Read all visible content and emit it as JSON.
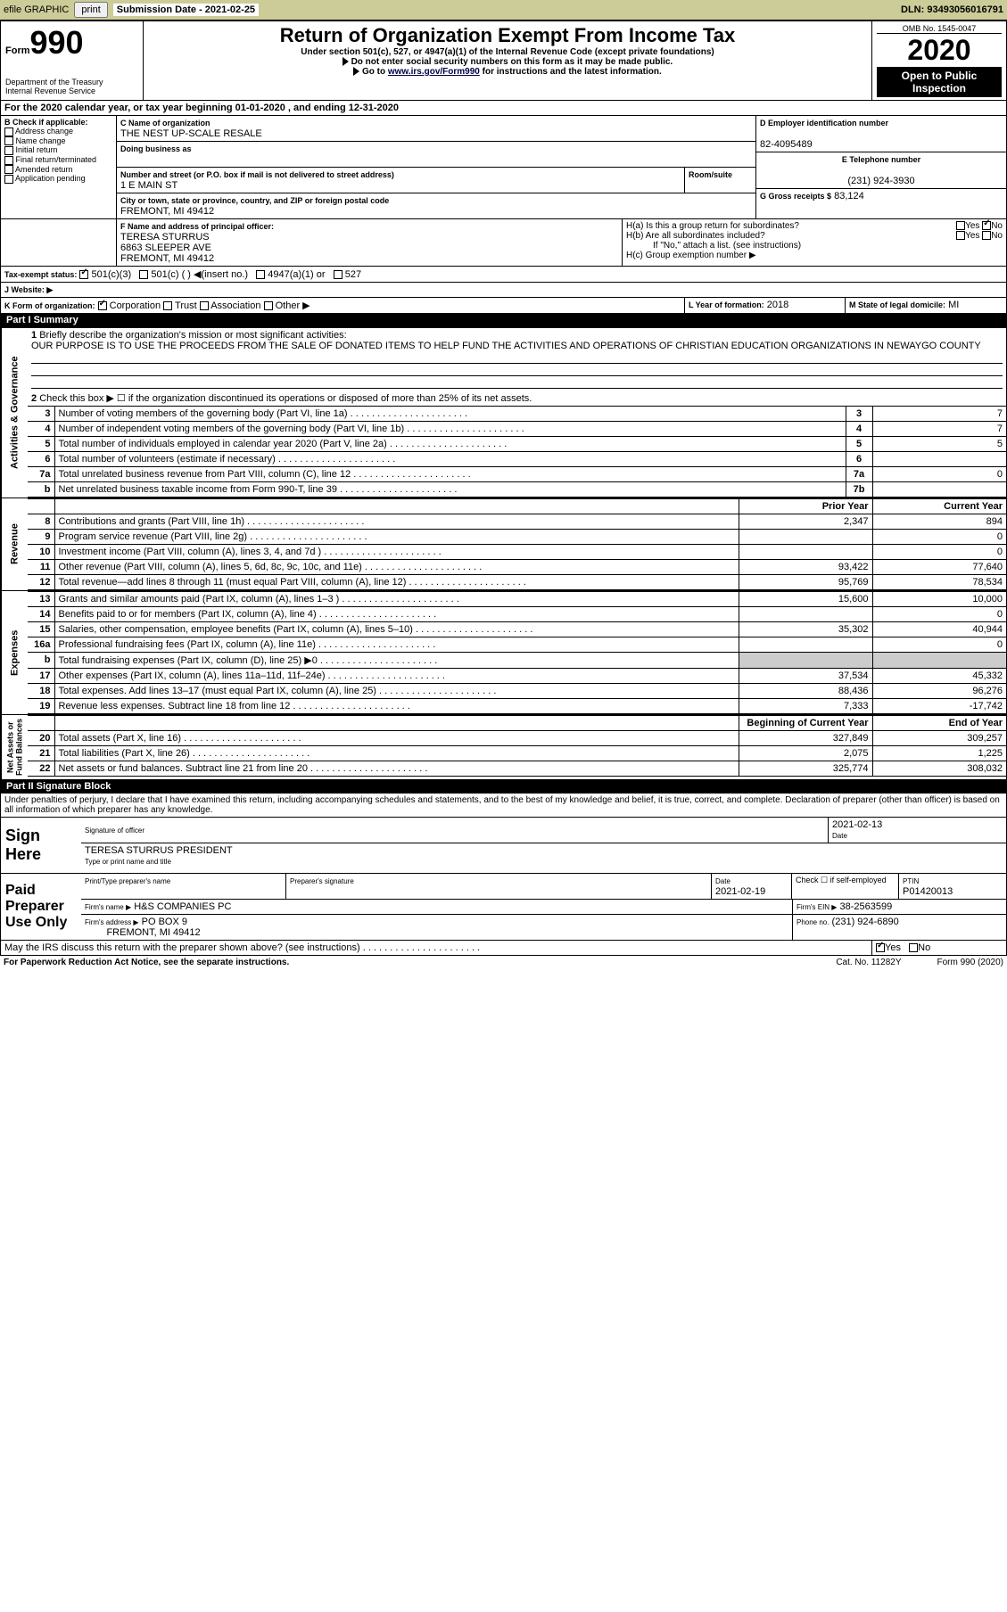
{
  "topbar": {
    "efile": "efile GRAPHIC",
    "print": "print",
    "sub_label": "Submission Date - 2021-02-25",
    "dln": "DLN: 93493056016791"
  },
  "header": {
    "form_label": "Form",
    "form_no": "990",
    "dept": "Department of the Treasury\nInternal Revenue Service",
    "title": "Return of Organization Exempt From Income Tax",
    "subtitle": "Under section 501(c), 527, or 4947(a)(1) of the Internal Revenue Code (except private foundations)",
    "note1": "Do not enter social security numbers on this form as it may be made public.",
    "note2_pre": "Go to ",
    "note2_link": "www.irs.gov/Form990",
    "note2_post": " for instructions and the latest information.",
    "omb": "OMB No. 1545-0047",
    "year": "2020",
    "otp": "Open to Public Inspection"
  },
  "lineA": "For the 2020 calendar year, or tax year beginning 01-01-2020    , and ending 12-31-2020",
  "boxB": {
    "label": "B Check if applicable:",
    "items": [
      "Address change",
      "Name change",
      "Initial return",
      "Final return/terminated",
      "Amended return",
      "Application pending"
    ]
  },
  "boxC": {
    "label": "C Name of organization",
    "name": "THE NEST UP-SCALE RESALE",
    "dba": "Doing business as",
    "addr_label": "Number and street (or P.O. box if mail is not delivered to street address)",
    "room": "Room/suite",
    "addr": "1 E MAIN ST",
    "city_label": "City or town, state or province, country, and ZIP or foreign postal code",
    "city": "FREMONT, MI  49412"
  },
  "boxD": {
    "label": "D Employer identification number",
    "val": "82-4095489"
  },
  "boxE": {
    "label": "E Telephone number",
    "val": "(231) 924-3930"
  },
  "boxG": {
    "label": "G Gross receipts $",
    "val": "83,124"
  },
  "boxF": {
    "label": "F  Name and address of principal officer:",
    "name": "TERESA STURRUS",
    "addr": "6863 SLEEPER AVE",
    "city": "FREMONT, MI  49412"
  },
  "boxH": {
    "a": "H(a)  Is this a group return for subordinates?",
    "b": "H(b)  Are all subordinates included?",
    "note": "If \"No,\" attach a list. (see instructions)",
    "c": "H(c)  Group exemption number ▶",
    "yes": "Yes",
    "no": "No"
  },
  "boxI": {
    "label": "Tax-exempt status:",
    "c501c3": "501(c)(3)",
    "c501c": "501(c) ( )  ◀(insert no.)",
    "c4947": "4947(a)(1) or",
    "c527": "527"
  },
  "boxJ": {
    "label": "J    Website: ▶"
  },
  "boxK": {
    "label": "K Form of organization:",
    "corp": "Corporation",
    "trust": "Trust",
    "assoc": "Association",
    "other": "Other ▶"
  },
  "boxL": {
    "label": "L Year of formation:",
    "val": "2018"
  },
  "boxM": {
    "label": "M State of legal domicile:",
    "val": "MI"
  },
  "part1": {
    "title": "Part I     Summary",
    "q1": "Briefly describe the organization's mission or most significant activities:",
    "mission": "OUR PURPOSE IS TO USE THE PROCEEDS FROM THE SALE OF DONATED ITEMS TO HELP FUND THE ACTIVITIES AND OPERATIONS OF CHRISTIAN EDUCATION ORGANIZATIONS IN NEWAYGO COUNTY",
    "q2": "Check this box ▶ ☐ if the organization discontinued its operations or disposed of more than 25% of its net assets.",
    "rows_a": [
      {
        "n": "3",
        "t": "Number of voting members of the governing body (Part VI, line 1a)",
        "box": "3",
        "v": "7"
      },
      {
        "n": "4",
        "t": "Number of independent voting members of the governing body (Part VI, line 1b)",
        "box": "4",
        "v": "7"
      },
      {
        "n": "5",
        "t": "Total number of individuals employed in calendar year 2020 (Part V, line 2a)",
        "box": "5",
        "v": "5"
      },
      {
        "n": "6",
        "t": "Total number of volunteers (estimate if necessary)",
        "box": "6",
        "v": ""
      },
      {
        "n": "7a",
        "t": "Total unrelated business revenue from Part VIII, column (C), line 12",
        "box": "7a",
        "v": "0"
      },
      {
        "n": "b",
        "t": "Net unrelated business taxable income from Form 990-T, line 39",
        "box": "7b",
        "v": ""
      }
    ],
    "col_py": "Prior Year",
    "col_cy": "Current Year",
    "rows_rev": [
      {
        "n": "8",
        "t": "Contributions and grants (Part VIII, line 1h)",
        "py": "2,347",
        "cy": "894"
      },
      {
        "n": "9",
        "t": "Program service revenue (Part VIII, line 2g)",
        "py": "",
        "cy": "0"
      },
      {
        "n": "10",
        "t": "Investment income (Part VIII, column (A), lines 3, 4, and 7d )",
        "py": "",
        "cy": "0"
      },
      {
        "n": "11",
        "t": "Other revenue (Part VIII, column (A), lines 5, 6d, 8c, 9c, 10c, and 11e)",
        "py": "93,422",
        "cy": "77,640"
      },
      {
        "n": "12",
        "t": "Total revenue—add lines 8 through 11 (must equal Part VIII, column (A), line 12)",
        "py": "95,769",
        "cy": "78,534"
      }
    ],
    "rows_exp": [
      {
        "n": "13",
        "t": "Grants and similar amounts paid (Part IX, column (A), lines 1–3 )",
        "py": "15,600",
        "cy": "10,000"
      },
      {
        "n": "14",
        "t": "Benefits paid to or for members (Part IX, column (A), line 4)",
        "py": "",
        "cy": "0"
      },
      {
        "n": "15",
        "t": "Salaries, other compensation, employee benefits (Part IX, column (A), lines 5–10)",
        "py": "35,302",
        "cy": "40,944"
      },
      {
        "n": "16a",
        "t": "Professional fundraising fees (Part IX, column (A), line 11e)",
        "py": "",
        "cy": "0"
      },
      {
        "n": "b",
        "t": "Total fundraising expenses (Part IX, column (D), line 25) ▶0",
        "py": "gray",
        "cy": "gray"
      },
      {
        "n": "17",
        "t": "Other expenses (Part IX, column (A), lines 11a–11d, 11f–24e)",
        "py": "37,534",
        "cy": "45,332"
      },
      {
        "n": "18",
        "t": "Total expenses. Add lines 13–17 (must equal Part IX, column (A), line 25)",
        "py": "88,436",
        "cy": "96,276"
      },
      {
        "n": "19",
        "t": "Revenue less expenses. Subtract line 18 from line 12",
        "py": "7,333",
        "cy": "-17,742"
      }
    ],
    "col_boy": "Beginning of Current Year",
    "col_eoy": "End of Year",
    "rows_na": [
      {
        "n": "20",
        "t": "Total assets (Part X, line 16)",
        "py": "327,849",
        "cy": "309,257"
      },
      {
        "n": "21",
        "t": "Total liabilities (Part X, line 26)",
        "py": "2,075",
        "cy": "1,225"
      },
      {
        "n": "22",
        "t": "Net assets or fund balances. Subtract line 21 from line 20",
        "py": "325,774",
        "cy": "308,032"
      }
    ],
    "vlabels": {
      "ag": "Activities & Governance",
      "rev": "Revenue",
      "exp": "Expenses",
      "na": "Net Assets or\nFund Balances"
    }
  },
  "part2": {
    "title": "Part II     Signature Block",
    "jurat": "Under penalties of perjury, I declare that I have examined this return, including accompanying schedules and statements, and to the best of my knowledge and belief, it is true, correct, and complete. Declaration of preparer (other than officer) is based on all information of which preparer has any knowledge.",
    "sign_here": "Sign Here",
    "sig_officer": "Signature of officer",
    "date": "Date",
    "date_val": "2021-02-13",
    "type_name": "Type or print name and title",
    "officer": "TERESA STURRUS  PRESIDENT",
    "paid": "Paid Preparer Use Only",
    "pt_name": "Print/Type preparer's name",
    "pt_sig": "Preparer's signature",
    "pt_date": "Date",
    "pt_date_val": "2021-02-19",
    "self": "Check ☐ if self-employed",
    "ptin": "PTIN",
    "ptin_val": "P01420013",
    "firm_name": "Firm's name  ▶",
    "firm_name_val": "H&S COMPANIES PC",
    "firm_ein": "Firm's EIN ▶",
    "firm_ein_val": "38-2563599",
    "firm_addr": "Firm's address ▶",
    "firm_addr_val": "PO BOX 9",
    "firm_city": "FREMONT, MI  49412",
    "phone": "Phone no.",
    "phone_val": "(231) 924-6890",
    "discuss": "May the IRS discuss this return with the preparer shown above? (see instructions)",
    "yes": "Yes",
    "no": "No"
  },
  "footer": {
    "pra": "For Paperwork Reduction Act Notice, see the separate instructions.",
    "cat": "Cat. No. 11282Y",
    "form": "Form 990 (2020)"
  },
  "colors": {
    "tb": "#cccc99",
    "black": "#000",
    "gray": "#cccccc"
  }
}
